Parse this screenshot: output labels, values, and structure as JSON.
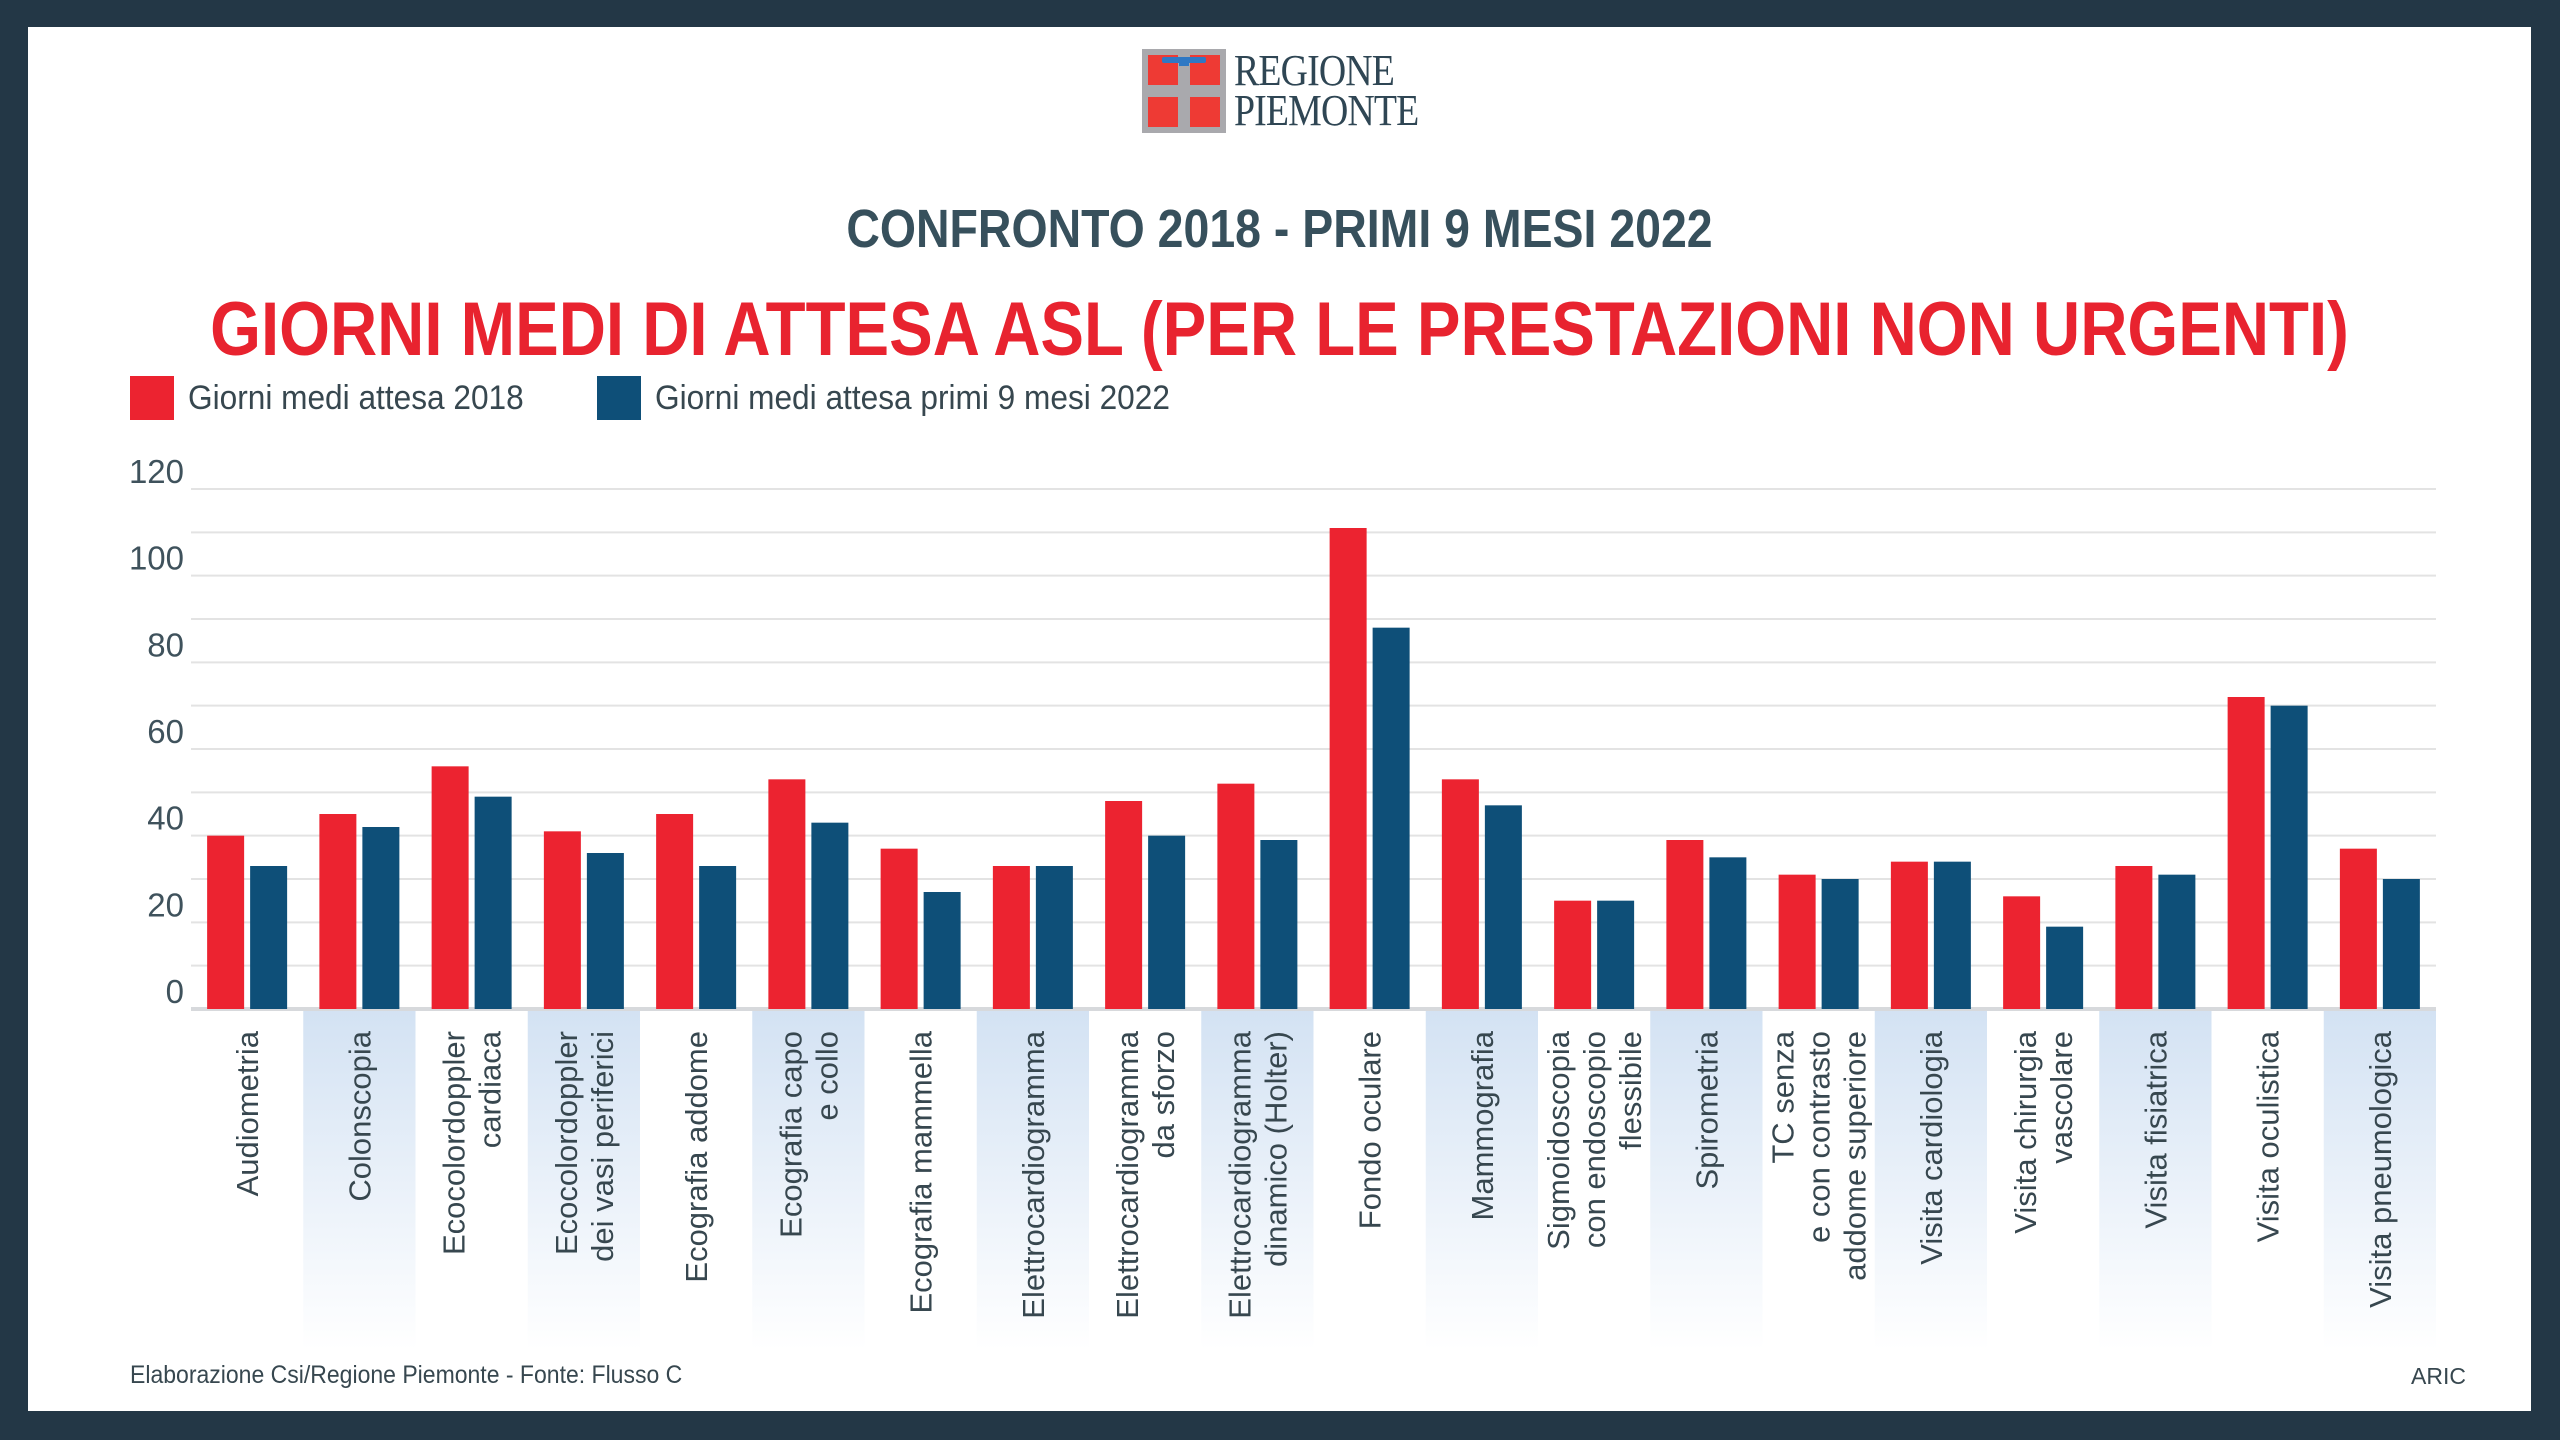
{
  "logo": {
    "line1": "REGIONE",
    "line2": "PIEMONTE"
  },
  "subtitle": "CONFRONTO 2018 - PRIMI 9 MESI 2022",
  "title": "GIORNI MEDI DI ATTESA ASL (PER LE PRESTAZIONI NON URGENTI)",
  "colors": {
    "series_2018": "#EC2330",
    "series_2022": "#0E4F78",
    "frame": "#233746",
    "band": "#D3E2F3"
  },
  "footer": {
    "source": "Elaborazione Csi/Regione Piemonte - Fonte: Flusso C",
    "credit": "ARIC"
  },
  "chart_data": {
    "type": "bar",
    "title": "GIORNI MEDI DI ATTESA ASL (PER LE PRESTAZIONI NON URGENTI)",
    "subtitle": "CONFRONTO 2018 - PRIMI 9 MESI 2022",
    "xlabel": "",
    "ylabel": "",
    "ylim": [
      0,
      120
    ],
    "yticks": [
      0,
      20,
      40,
      60,
      80,
      100,
      120
    ],
    "minor_gridlines_every": 10,
    "grid": true,
    "legend_position": "top-left",
    "categories": [
      [
        "Audiometria"
      ],
      [
        "Colonscopia"
      ],
      [
        "Ecocolordoppler",
        "cardiaca"
      ],
      [
        "Ecocolordoppler",
        "dei vasi periferici"
      ],
      [
        "Ecografia addome"
      ],
      [
        "Ecografia capo",
        "e collo"
      ],
      [
        "Ecografia mammella"
      ],
      [
        "Elettrocardiogramma"
      ],
      [
        "Elettrocardiogramma",
        "da sforzo"
      ],
      [
        "Elettrocardiogramma",
        "dinamico (Holter)"
      ],
      [
        "Fondo oculare"
      ],
      [
        "Mammografia"
      ],
      [
        "Sigmoidoscopia",
        "con endoscopio",
        "flessibile"
      ],
      [
        "Spirometria"
      ],
      [
        "TC senza",
        "e con contrasto",
        "addome superiore"
      ],
      [
        "Visita cardiologia"
      ],
      [
        "Visita chirurgia",
        "vascolare"
      ],
      [
        "Visita fisiatrica"
      ],
      [
        "Visita oculistica"
      ],
      [
        "Visita pneumologica"
      ]
    ],
    "series": [
      {
        "name": "Giorni medi attesa 2018",
        "color": "#EC2330",
        "values": [
          40,
          45,
          56,
          41,
          45,
          53,
          37,
          33,
          48,
          52,
          111,
          53,
          25,
          39,
          31,
          34,
          26,
          33,
          72,
          37
        ]
      },
      {
        "name": "Giorni medi attesa primi 9 mesi 2022",
        "color": "#0E4F78",
        "values": [
          33,
          42,
          49,
          36,
          33,
          43,
          27,
          33,
          40,
          39,
          88,
          47,
          25,
          35,
          30,
          34,
          19,
          31,
          70,
          30
        ]
      }
    ]
  }
}
